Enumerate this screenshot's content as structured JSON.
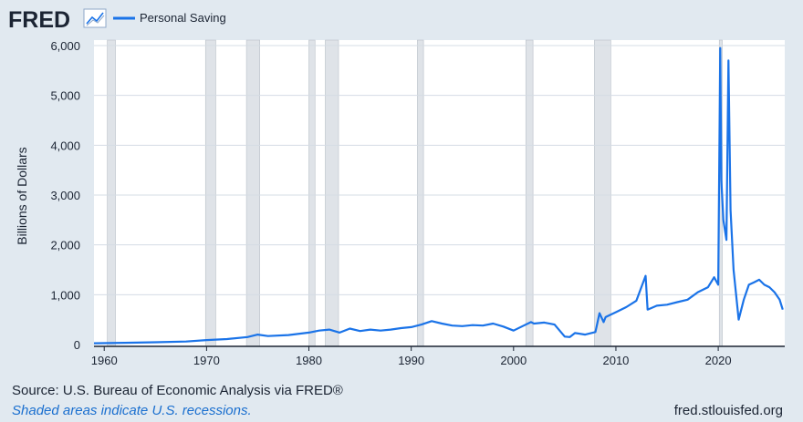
{
  "header": {
    "logo_text": "FRED",
    "logo_icon": "trend-line-icon",
    "legend_label": "Personal Saving"
  },
  "colors": {
    "series": "#1a73e8",
    "background": "#e1e9f0",
    "plot_bg": "#ffffff",
    "recession": "#dfe3e8",
    "grid": "#d5dce4",
    "text": "#1b2433",
    "note": "#1a6fcf"
  },
  "chart_data": {
    "type": "line",
    "title": "",
    "xlabel": "",
    "ylabel": "Billions of Dollars",
    "xlim": [
      1959.0,
      2026.5
    ],
    "ylim": [
      0,
      6000
    ],
    "yticks": [
      0,
      1000,
      2000,
      3000,
      4000,
      5000,
      6000
    ],
    "ytick_labels": [
      "0",
      "1,000",
      "2,000",
      "3,000",
      "4,000",
      "5,000",
      "6,000"
    ],
    "xticks": [
      1960,
      1970,
      1980,
      1990,
      2000,
      2010,
      2020
    ],
    "xtick_labels": [
      "1960",
      "1970",
      "1980",
      "1990",
      "2000",
      "2010",
      "2020"
    ],
    "grid": true,
    "legend_position": "top-left",
    "recessions": [
      [
        1960.3,
        1961.1
      ],
      [
        1969.9,
        1970.9
      ],
      [
        1973.9,
        1975.2
      ],
      [
        1980.0,
        1980.6
      ],
      [
        1981.6,
        1982.9
      ],
      [
        1990.6,
        1991.2
      ],
      [
        2001.2,
        2001.9
      ],
      [
        2007.9,
        2009.5
      ],
      [
        2020.1,
        2020.4
      ]
    ],
    "series": [
      {
        "name": "Personal Saving",
        "x": [
          1959.0,
          1962,
          1965,
          1968,
          1970,
          1972,
          1974,
          1975,
          1976,
          1978,
          1980,
          1981,
          1982,
          1983,
          1984,
          1985,
          1986,
          1987,
          1988,
          1989,
          1990,
          1991,
          1992,
          1993,
          1994,
          1995,
          1996,
          1997,
          1998,
          1999,
          2000,
          2001,
          2001.7,
          2002,
          2003,
          2004,
          2005,
          2005.5,
          2006,
          2007,
          2008,
          2008.4,
          2008.8,
          2009,
          2010,
          2011,
          2012,
          2012.9,
          2013.1,
          2014,
          2015,
          2016,
          2017,
          2018,
          2019,
          2019.6,
          2020.0,
          2020.2,
          2020.3,
          2020.5,
          2020.8,
          2021.0,
          2021.2,
          2021.5,
          2022.0,
          2022.5,
          2023.0,
          2023.5,
          2024.0,
          2024.5,
          2025.0,
          2025.5,
          2026.0,
          2026.3
        ],
        "values": [
          25,
          35,
          45,
          60,
          90,
          110,
          150,
          200,
          170,
          190,
          240,
          280,
          300,
          240,
          320,
          270,
          300,
          280,
          300,
          330,
          350,
          400,
          470,
          420,
          380,
          370,
          390,
          380,
          420,
          360,
          280,
          380,
          450,
          420,
          440,
          400,
          160,
          150,
          230,
          200,
          250,
          630,
          450,
          550,
          650,
          750,
          880,
          1380,
          700,
          780,
          800,
          850,
          900,
          1050,
          1150,
          1350,
          1200,
          5950,
          3300,
          2500,
          2100,
          5700,
          2700,
          1500,
          500,
          900,
          1200,
          1250,
          1300,
          1200,
          1150,
          1050,
          900,
          700
        ]
      }
    ]
  },
  "footer": {
    "source": "Source: U.S. Bureau of Economic Analysis via FRED®",
    "recession_note": "Shaded areas indicate U.S. recessions.",
    "site": "fred.stlouisfed.org"
  }
}
